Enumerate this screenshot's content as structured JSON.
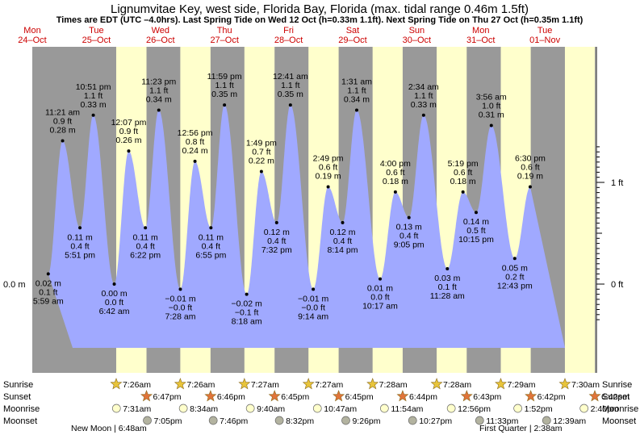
{
  "title": "Lignumvitae Key, west side, Florida Bay, Florida (max. tidal range 0.46m 1.5ft)",
  "subtitle": "Times are EDT (UTC –4.0hrs). Last Spring Tide on Wed 12 Oct (h=0.33m 1.1ft). Next Spring Tide on Thu 27 Oct (h=0.35m 1.1ft)",
  "colors": {
    "night": "#999999",
    "day": "#ffffcc",
    "water": "#a0a9ff",
    "date_text": "#cc0000",
    "sun_star": "#e8c43a",
    "sunset_star": "#e0743a",
    "moonrise": "#ffffcc",
    "moonset": "#b3b3a0"
  },
  "days": [
    {
      "dow": "Mon",
      "date": "24–Oct"
    },
    {
      "dow": "Tue",
      "date": "25–Oct"
    },
    {
      "dow": "Wed",
      "date": "26–Oct"
    },
    {
      "dow": "Thu",
      "date": "27–Oct"
    },
    {
      "dow": "Fri",
      "date": "28–Oct"
    },
    {
      "dow": "Sat",
      "date": "29–Oct"
    },
    {
      "dow": "Sun",
      "date": "30–Oct"
    },
    {
      "dow": "Mon",
      "date": "31–Oct"
    },
    {
      "dow": "Tue",
      "date": "01–Nov"
    }
  ],
  "row_labels": {
    "sunrise": "Sunrise",
    "sunset": "Sunset",
    "moonrise": "Moonrise",
    "moonset": "Moonset"
  },
  "sunrise": [
    "7:26am",
    "7:26am",
    "7:27am",
    "7:27am",
    "7:28am",
    "7:28am",
    "7:29am",
    "7:30am"
  ],
  "sunset": [
    "6:47pm",
    "6:46pm",
    "6:45pm",
    "6:45pm",
    "6:44pm",
    "6:43pm",
    "6:42pm",
    "6:42pm"
  ],
  "moonrise": [
    "7:31am",
    "8:34am",
    "9:40am",
    "10:47am",
    "11:54am",
    "12:56pm",
    "1:52pm",
    "2:40pm"
  ],
  "moonset": [
    "7:05pm",
    "7:46pm",
    "8:32pm",
    "9:26pm",
    "10:27pm",
    "11:33pm",
    "12:39am"
  ],
  "moon_phases": [
    {
      "label": "New Moon | 6:48am"
    },
    {
      "label": "First Quarter | 2:38am"
    }
  ],
  "chart_data": {
    "type": "area",
    "title": "Lignumvitae Key, west side, Florida Bay, Florida (max. tidal range 0.46m 1.5ft)",
    "ylim_m": [
      -0.035,
      0.46
    ],
    "left_axis": {
      "unit": "m",
      "ticks": [
        {
          "value": 0.0,
          "label": "0.0 m"
        }
      ]
    },
    "right_axis": {
      "unit": "ft",
      "ticks": [
        {
          "value": 0,
          "label": "0 ft"
        },
        {
          "value": 1,
          "label": "1 ft"
        }
      ]
    },
    "tides": [
      {
        "time": "2022-10-24T05:59",
        "m": "0.02 m",
        "ft": "0.1 ft",
        "t": "5:59 am",
        "v": 0.02,
        "type": "low"
      },
      {
        "time": "2022-10-24T11:21",
        "m": "0.28 m",
        "ft": "0.9 ft",
        "t": "11:21 am",
        "v": 0.28,
        "type": "high"
      },
      {
        "time": "2022-10-24T17:51",
        "m": "0.11 m",
        "ft": "0.4 ft",
        "t": "5:51 pm",
        "v": 0.11,
        "type": "low"
      },
      {
        "time": "2022-10-24T22:51",
        "m": "0.33 m",
        "ft": "1.1 ft",
        "t": "10:51 pm",
        "v": 0.33,
        "type": "high"
      },
      {
        "time": "2022-10-25T06:42",
        "m": "0.00 m",
        "ft": "0.0 ft",
        "t": "6:42 am",
        "v": 0.0,
        "type": "low"
      },
      {
        "time": "2022-10-25T12:07",
        "m": "0.26 m",
        "ft": "0.9 ft",
        "t": "12:07 pm",
        "v": 0.26,
        "type": "high"
      },
      {
        "time": "2022-10-25T18:22",
        "m": "0.11 m",
        "ft": "0.4 ft",
        "t": "6:22 pm",
        "v": 0.11,
        "type": "low"
      },
      {
        "time": "2022-10-25T23:23",
        "m": "0.34 m",
        "ft": "1.1 ft",
        "t": "11:23 pm",
        "v": 0.34,
        "type": "high"
      },
      {
        "time": "2022-10-26T07:28",
        "m": "−0.01 m",
        "ft": "−0.0 ft",
        "t": "7:28 am",
        "v": -0.01,
        "type": "low"
      },
      {
        "time": "2022-10-26T12:56",
        "m": "0.24 m",
        "ft": "0.8 ft",
        "t": "12:56 pm",
        "v": 0.24,
        "type": "high"
      },
      {
        "time": "2022-10-26T18:55",
        "m": "0.11 m",
        "ft": "0.4 ft",
        "t": "6:55 pm",
        "v": 0.11,
        "type": "low"
      },
      {
        "time": "2022-10-26T23:59",
        "m": "0.35 m",
        "ft": "1.1 ft",
        "t": "11:59 pm",
        "v": 0.35,
        "type": "high"
      },
      {
        "time": "2022-10-27T08:18",
        "m": "−0.02 m",
        "ft": "−0.1 ft",
        "t": "8:18 am",
        "v": -0.02,
        "type": "low"
      },
      {
        "time": "2022-10-27T13:49",
        "m": "0.22 m",
        "ft": "0.7 ft",
        "t": "1:49 pm",
        "v": 0.22,
        "type": "high"
      },
      {
        "time": "2022-10-27T19:32",
        "m": "0.12 m",
        "ft": "0.4 ft",
        "t": "7:32 pm",
        "v": 0.12,
        "type": "low"
      },
      {
        "time": "2022-10-28T00:41",
        "m": "0.35 m",
        "ft": "1.1 ft",
        "t": "12:41 am",
        "v": 0.35,
        "type": "high"
      },
      {
        "time": "2022-10-28T09:14",
        "m": "−0.01 m",
        "ft": "−0.0 ft",
        "t": "9:14 am",
        "v": -0.01,
        "type": "low"
      },
      {
        "time": "2022-10-28T14:49",
        "m": "0.19 m",
        "ft": "0.6 ft",
        "t": "2:49 pm",
        "v": 0.19,
        "type": "high"
      },
      {
        "time": "2022-10-28T20:14",
        "m": "0.12 m",
        "ft": "0.4 ft",
        "t": "8:14 pm",
        "v": 0.12,
        "type": "low"
      },
      {
        "time": "2022-10-29T01:31",
        "m": "0.34 m",
        "ft": "1.1 ft",
        "t": "1:31 am",
        "v": 0.34,
        "type": "high"
      },
      {
        "time": "2022-10-29T10:17",
        "m": "0.01 m",
        "ft": "0.0 ft",
        "t": "10:17 am",
        "v": 0.01,
        "type": "low"
      },
      {
        "time": "2022-10-29T16:00",
        "m": "0.18 m",
        "ft": "0.6 ft",
        "t": "4:00 pm",
        "v": 0.18,
        "type": "high"
      },
      {
        "time": "2022-10-29T21:05",
        "m": "0.13 m",
        "ft": "0.4 ft",
        "t": "9:05 pm",
        "v": 0.13,
        "type": "low"
      },
      {
        "time": "2022-10-30T02:34",
        "m": "0.33 m",
        "ft": "1.1 ft",
        "t": "2:34 am",
        "v": 0.33,
        "type": "high"
      },
      {
        "time": "2022-10-30T11:28",
        "m": "0.03 m",
        "ft": "0.1 ft",
        "t": "11:28 am",
        "v": 0.03,
        "type": "low"
      },
      {
        "time": "2022-10-30T17:19",
        "m": "0.18 m",
        "ft": "0.6 ft",
        "t": "5:19 pm",
        "v": 0.18,
        "type": "high"
      },
      {
        "time": "2022-10-30T22:15",
        "m": "0.14 m",
        "ft": "0.5 ft",
        "t": "10:15 pm",
        "v": 0.14,
        "type": "low"
      },
      {
        "time": "2022-10-31T03:56",
        "m": "0.31 m",
        "ft": "1.0 ft",
        "t": "3:56 am",
        "v": 0.31,
        "type": "high"
      },
      {
        "time": "2022-10-31T12:43",
        "m": "0.05 m",
        "ft": "0.2 ft",
        "t": "12:43 pm",
        "v": 0.05,
        "type": "low"
      },
      {
        "time": "2022-10-31T18:30",
        "m": "0.19 m",
        "ft": "0.6 ft",
        "t": "6:30 pm",
        "v": 0.19,
        "type": "high"
      }
    ]
  }
}
